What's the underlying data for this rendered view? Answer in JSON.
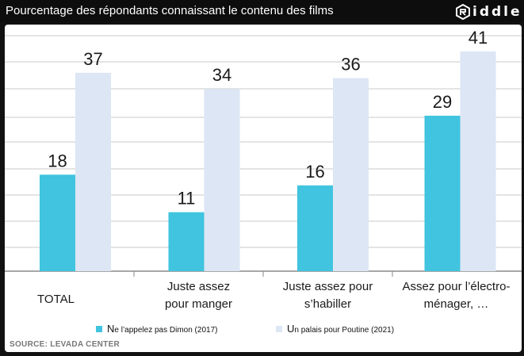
{
  "header": {
    "title": "Pourcentage des répondants connaissant le contenu des films",
    "logo_text": "iddle",
    "logo_icon": "riddle-logo-icon"
  },
  "colors": {
    "series_2017": "#40c4df",
    "series_2021": "#dde6f4",
    "grid": "#c8c8c8",
    "axis_text": "#1a1a1a"
  },
  "source": "SOURCE: LEVADA CENTER",
  "chart_data": {
    "type": "bar",
    "title": "Pourcentage des répondants connaissant le contenu des films",
    "categories": [
      [
        "TOTAL"
      ],
      [
        "Juste assez",
        "pour manger"
      ],
      [
        "Juste assez pour",
        "s’habiller"
      ],
      [
        "Assez pour l’électro-",
        "ménager, …"
      ]
    ],
    "series": [
      {
        "name": "Ne l’appelez pas Dimon (2017)",
        "legend_main": "N",
        "legend_rest": "e l’appelez pas Dimon (2017)",
        "values": [
          18,
          11,
          16,
          29
        ]
      },
      {
        "name": "Un palais pour Poutine (2021)",
        "legend_main": "U",
        "legend_rest": "n palais pour Poutine (2021)",
        "values": [
          37,
          34,
          36,
          41
        ]
      }
    ],
    "ylim": [
      0,
      46
    ],
    "grid": true,
    "legend_position": "bottom",
    "xlabel": "",
    "ylabel": ""
  }
}
